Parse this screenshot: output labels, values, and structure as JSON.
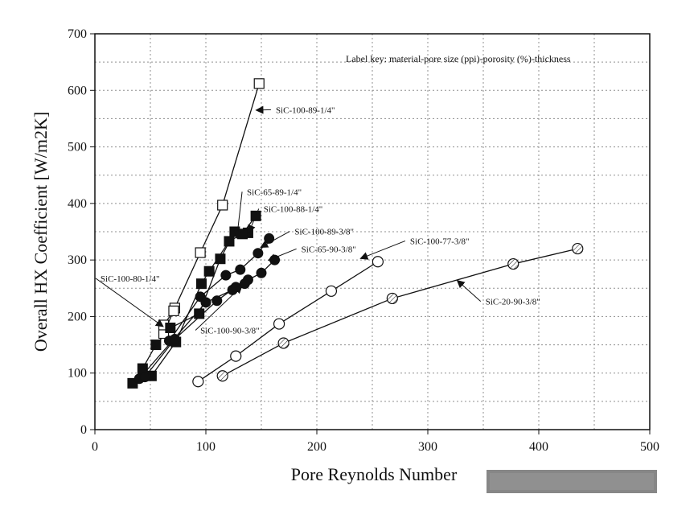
{
  "chart_data": {
    "type": "line",
    "title": "",
    "xlabel": "Pore Reynolds Number",
    "ylabel": "Overall HX Coefficient [W/m2K]",
    "xlim": [
      0,
      500
    ],
    "ylim": [
      0,
      700
    ],
    "x_ticks": [
      0,
      100,
      200,
      300,
      400,
      500
    ],
    "y_ticks": [
      0,
      100,
      200,
      300,
      400,
      500,
      600,
      700
    ],
    "grid": true,
    "legend_note": "Label key: material-pore size (ppi)-porosity (%)-thickness",
    "series": [
      {
        "name": "SiC-100-89-1/4\"",
        "marker": "open-square",
        "x": [
          62,
          72,
          95,
          115,
          148
        ],
        "y": [
          170,
          215,
          313,
          397,
          612
        ]
      },
      {
        "name": "SiC-100-80-1/4\"",
        "marker": "open-square",
        "x": [
          62,
          71
        ],
        "y": [
          185,
          210
        ]
      },
      {
        "name": "SiC-65-89-1/4\"",
        "marker": "filled-square",
        "x": [
          34,
          43,
          55,
          68,
          94,
          113,
          126,
          138
        ],
        "y": [
          82,
          108,
          150,
          180,
          205,
          302,
          350,
          348
        ]
      },
      {
        "name": "SiC-100-88-1/4\"",
        "marker": "filled-square",
        "x": [
          51,
          73,
          96,
          103,
          121,
          133,
          145
        ],
        "y": [
          95,
          155,
          258,
          280,
          333,
          346,
          378
        ]
      },
      {
        "name": "SiC-100-89-3/8\"",
        "marker": "filled-circle",
        "x": [
          67,
          95,
          118,
          131,
          147,
          157
        ],
        "y": [
          157,
          235,
          273,
          283,
          312,
          338
        ]
      },
      {
        "name": "SiC-65-90-3/8\"",
        "marker": "filled-circle",
        "x": [
          40,
          100,
          124,
          138,
          150,
          162
        ],
        "y": [
          90,
          225,
          247,
          265,
          277,
          300
        ]
      },
      {
        "name": "SiC-100-90-3/8\"",
        "marker": "filled-circle",
        "x": [
          45,
          72,
          110,
          127,
          135
        ],
        "y": [
          93,
          160,
          228,
          252,
          258
        ]
      },
      {
        "name": "SiC-100-77-3/8\"",
        "marker": "open-circle",
        "x": [
          93,
          127,
          166,
          213,
          255
        ],
        "y": [
          85,
          130,
          187,
          245,
          297
        ]
      },
      {
        "name": "SiC-20-90-3/8\"",
        "marker": "open-circle-hatched",
        "x": [
          115,
          170,
          268,
          377,
          435
        ],
        "y": [
          95,
          153,
          232,
          293,
          320
        ]
      }
    ],
    "annotations": [
      {
        "text": "SiC-100-89-1/4\"",
        "x": 163,
        "y": 560
      },
      {
        "text": "SiC-65-89-1/4\"",
        "x": 137,
        "y": 415
      },
      {
        "text": "SiC-100-88-1/4\"",
        "x": 152,
        "y": 385
      },
      {
        "text": "SiC-100-89-3/8\"",
        "x": 180,
        "y": 345
      },
      {
        "text": "SiC-65-90-3/8\"",
        "x": 186,
        "y": 314
      },
      {
        "text": "SiC-100-80-1/4\"",
        "x": 5,
        "y": 262
      },
      {
        "text": "SiC-100-90-3/8\"",
        "x": 95,
        "y": 170
      },
      {
        "text": "SiC-100-77-3/8\"",
        "x": 284,
        "y": 328
      },
      {
        "text": "SiC-20-90-3/8\"",
        "x": 352,
        "y": 221
      }
    ]
  }
}
